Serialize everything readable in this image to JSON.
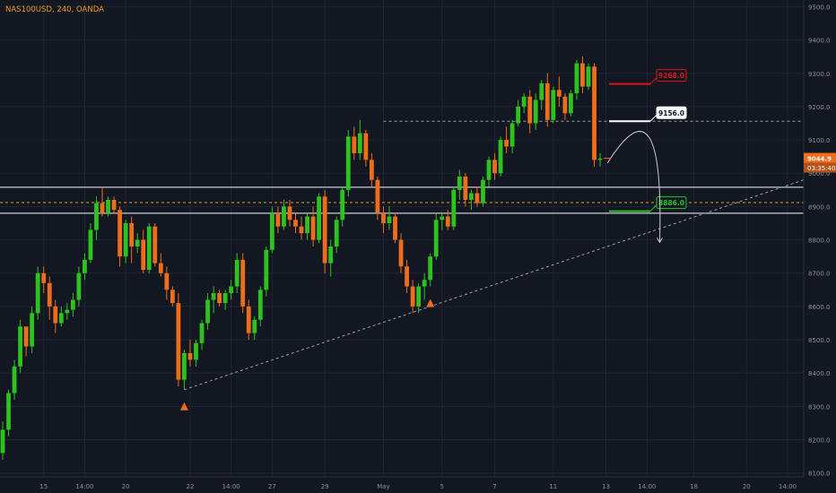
{
  "header": {
    "symbol": "NAS100USD, 240, OANDA"
  },
  "colors": {
    "background": "#131722",
    "grid": "#1f2433",
    "up_candle": "#2ec21f",
    "down_candle": "#ef6c1a",
    "axis_text": "#8a8f9c",
    "trendline": "#9aa0ab",
    "level_line": "#c9ccd4",
    "dashed_orange": "#e0a21a",
    "red_target": "#e01414",
    "white_target": "#ffffff",
    "green_target": "#22c51f"
  },
  "chart_data": {
    "type": "candlestick",
    "symbol": "NAS100USD",
    "timeframe": "240",
    "source": "OANDA",
    "ylim": [
      8040,
      9520
    ],
    "y_ticks": [
      8100,
      8200,
      8300,
      8400,
      8500,
      8600,
      8700,
      8800,
      8900,
      9000,
      9100,
      9200,
      9300,
      9400,
      9500
    ],
    "y_tick_labels": [
      "8100.0",
      "8200.0",
      "8300.0",
      "8400.0",
      "8500.0",
      "8600.0",
      "8700.0",
      "8800.0",
      "8900.0",
      "9000.0",
      "9100.0",
      "9200.0",
      "9300.0",
      "9400.0",
      "9500.0"
    ],
    "x_ticks": [
      {
        "label": "15",
        "bar": 7
      },
      {
        "label": "14:00",
        "bar": 14
      },
      {
        "label": "20",
        "bar": 21
      },
      {
        "label": "22",
        "bar": 32
      },
      {
        "label": "14:00",
        "bar": 39
      },
      {
        "label": "27",
        "bar": 46
      },
      {
        "label": "29",
        "bar": 55
      },
      {
        "label": "May",
        "bar": 65
      },
      {
        "label": "5",
        "bar": 75
      },
      {
        "label": "7",
        "bar": 84
      },
      {
        "label": "11",
        "bar": 94
      },
      {
        "label": "13",
        "bar": 103
      },
      {
        "label": "14:00",
        "bar": 110
      },
      {
        "label": "18",
        "bar": 118
      },
      {
        "label": "20",
        "bar": 127
      },
      {
        "label": "14:00",
        "bar": 134
      }
    ],
    "candles_ohlc": [
      [
        8160,
        8255,
        8140,
        8230
      ],
      [
        8230,
        8350,
        8210,
        8340
      ],
      [
        8340,
        8440,
        8320,
        8420
      ],
      [
        8420,
        8560,
        8400,
        8540
      ],
      [
        8540,
        8520,
        8450,
        8480
      ],
      [
        8480,
        8600,
        8460,
        8580
      ],
      [
        8580,
        8720,
        8560,
        8700
      ],
      [
        8700,
        8720,
        8640,
        8670
      ],
      [
        8670,
        8690,
        8560,
        8600
      ],
      [
        8600,
        8620,
        8520,
        8550
      ],
      [
        8550,
        8600,
        8540,
        8580
      ],
      [
        8580,
        8610,
        8560,
        8590
      ],
      [
        8590,
        8640,
        8570,
        8620
      ],
      [
        8620,
        8720,
        8600,
        8700
      ],
      [
        8700,
        8760,
        8680,
        8740
      ],
      [
        8740,
        8850,
        8730,
        8830
      ],
      [
        8830,
        8930,
        8800,
        8910
      ],
      [
        8910,
        8960,
        8870,
        8880
      ],
      [
        8880,
        8930,
        8870,
        8920
      ],
      [
        8920,
        8930,
        8880,
        8890
      ],
      [
        8890,
        8900,
        8720,
        8750
      ],
      [
        8750,
        8860,
        8730,
        8850
      ],
      [
        8850,
        8870,
        8730,
        8780
      ],
      [
        8780,
        8820,
        8760,
        8800
      ],
      [
        8800,
        8830,
        8700,
        8710
      ],
      [
        8710,
        8850,
        8700,
        8840
      ],
      [
        8840,
        8850,
        8720,
        8730
      ],
      [
        8730,
        8760,
        8690,
        8700
      ],
      [
        8700,
        8720,
        8620,
        8650
      ],
      [
        8650,
        8660,
        8600,
        8610
      ],
      [
        8610,
        8640,
        8360,
        8380
      ],
      [
        8380,
        8470,
        8350,
        8460
      ],
      [
        8460,
        8500,
        8420,
        8440
      ],
      [
        8440,
        8500,
        8420,
        8490
      ],
      [
        8490,
        8560,
        8470,
        8550
      ],
      [
        8550,
        8640,
        8530,
        8620
      ],
      [
        8620,
        8660,
        8580,
        8640
      ],
      [
        8640,
        8650,
        8600,
        8610
      ],
      [
        8610,
        8650,
        8590,
        8640
      ],
      [
        8640,
        8680,
        8620,
        8660
      ],
      [
        8660,
        8760,
        8640,
        8740
      ],
      [
        8740,
        8760,
        8580,
        8600
      ],
      [
        8600,
        8620,
        8500,
        8520
      ],
      [
        8520,
        8570,
        8500,
        8560
      ],
      [
        8560,
        8660,
        8540,
        8650
      ],
      [
        8650,
        8780,
        8630,
        8770
      ],
      [
        8770,
        8900,
        8760,
        8880
      ],
      [
        8880,
        8900,
        8820,
        8840
      ],
      [
        8840,
        8920,
        8830,
        8900
      ],
      [
        8900,
        8920,
        8840,
        8860
      ],
      [
        8860,
        8880,
        8820,
        8840
      ],
      [
        8840,
        8870,
        8800,
        8820
      ],
      [
        8820,
        8880,
        8800,
        8870
      ],
      [
        8870,
        8900,
        8780,
        8800
      ],
      [
        8800,
        8940,
        8790,
        8930
      ],
      [
        8930,
        8950,
        8700,
        8730
      ],
      [
        8730,
        8800,
        8690,
        8780
      ],
      [
        8780,
        8870,
        8760,
        8860
      ],
      [
        8860,
        8960,
        8840,
        8950
      ],
      [
        8950,
        9130,
        8930,
        9110
      ],
      [
        9110,
        9140,
        9040,
        9060
      ],
      [
        9060,
        9160,
        9040,
        9120
      ],
      [
        9120,
        9130,
        9020,
        9040
      ],
      [
        9040,
        9060,
        8960,
        8980
      ],
      [
        8980,
        8990,
        8860,
        8880
      ],
      [
        8880,
        8900,
        8820,
        8850
      ],
      [
        8850,
        8900,
        8830,
        8870
      ],
      [
        8870,
        8880,
        8790,
        8800
      ],
      [
        8800,
        8820,
        8700,
        8720
      ],
      [
        8720,
        8740,
        8640,
        8660
      ],
      [
        8660,
        8680,
        8580,
        8600
      ],
      [
        8600,
        8670,
        8580,
        8660
      ],
      [
        8660,
        8700,
        8620,
        8680
      ],
      [
        8680,
        8760,
        8660,
        8750
      ],
      [
        8750,
        8880,
        8740,
        8860
      ],
      [
        8860,
        8880,
        8830,
        8870
      ],
      [
        8870,
        8890,
        8830,
        8840
      ],
      [
        8840,
        8960,
        8830,
        8950
      ],
      [
        8950,
        9010,
        8920,
        8990
      ],
      [
        8990,
        9000,
        8900,
        8920
      ],
      [
        8920,
        8950,
        8890,
        8940
      ],
      [
        8940,
        8960,
        8900,
        8910
      ],
      [
        8910,
        8990,
        8900,
        8980
      ],
      [
        8980,
        9050,
        8960,
        9040
      ],
      [
        9040,
        9060,
        8980,
        9000
      ],
      [
        9000,
        9110,
        8990,
        9100
      ],
      [
        9100,
        9140,
        9060,
        9080
      ],
      [
        9080,
        9160,
        9060,
        9150
      ],
      [
        9150,
        9220,
        9140,
        9200
      ],
      [
        9200,
        9240,
        9180,
        9230
      ],
      [
        9230,
        9250,
        9120,
        9150
      ],
      [
        9150,
        9240,
        9130,
        9220
      ],
      [
        9220,
        9280,
        9190,
        9270
      ],
      [
        9270,
        9300,
        9140,
        9160
      ],
      [
        9160,
        9260,
        9150,
        9250
      ],
      [
        9250,
        9290,
        9200,
        9230
      ],
      [
        9230,
        9240,
        9160,
        9180
      ],
      [
        9180,
        9250,
        9170,
        9240
      ],
      [
        9240,
        9340,
        9220,
        9330
      ],
      [
        9330,
        9350,
        9240,
        9260
      ],
      [
        9260,
        9330,
        9250,
        9320
      ],
      [
        9320,
        9330,
        9020,
        9040
      ],
      [
        9040,
        9060,
        9020,
        9044
      ]
    ],
    "last_price": 9044.9,
    "last_price_label": "9044.9",
    "countdown_label": "03:35:40",
    "horizontal_levels": [
      8958,
      8880
    ],
    "orange_dashed_level": 8912,
    "resistance_dashed": {
      "value": 9156,
      "from_bar": 65,
      "to_bar": 140
    },
    "trendline": {
      "from": {
        "bar": 31,
        "value": 8350
      },
      "to": {
        "bar": 148,
        "value": 8980
      }
    },
    "support_marker_bars": [
      31,
      73
    ],
    "targets": [
      {
        "label": "9268.0",
        "value": 9268,
        "color": "red"
      },
      {
        "label": "9156.0",
        "value": 9156,
        "color": "white"
      },
      {
        "label": "8886.0",
        "value": 8886,
        "color": "green"
      }
    ],
    "projected_path": {
      "start": {
        "bar": 106,
        "value": 9030
      },
      "peak": {
        "bar": 113,
        "value": 9156
      },
      "end": {
        "bar": 114,
        "value": 8830
      }
    }
  }
}
